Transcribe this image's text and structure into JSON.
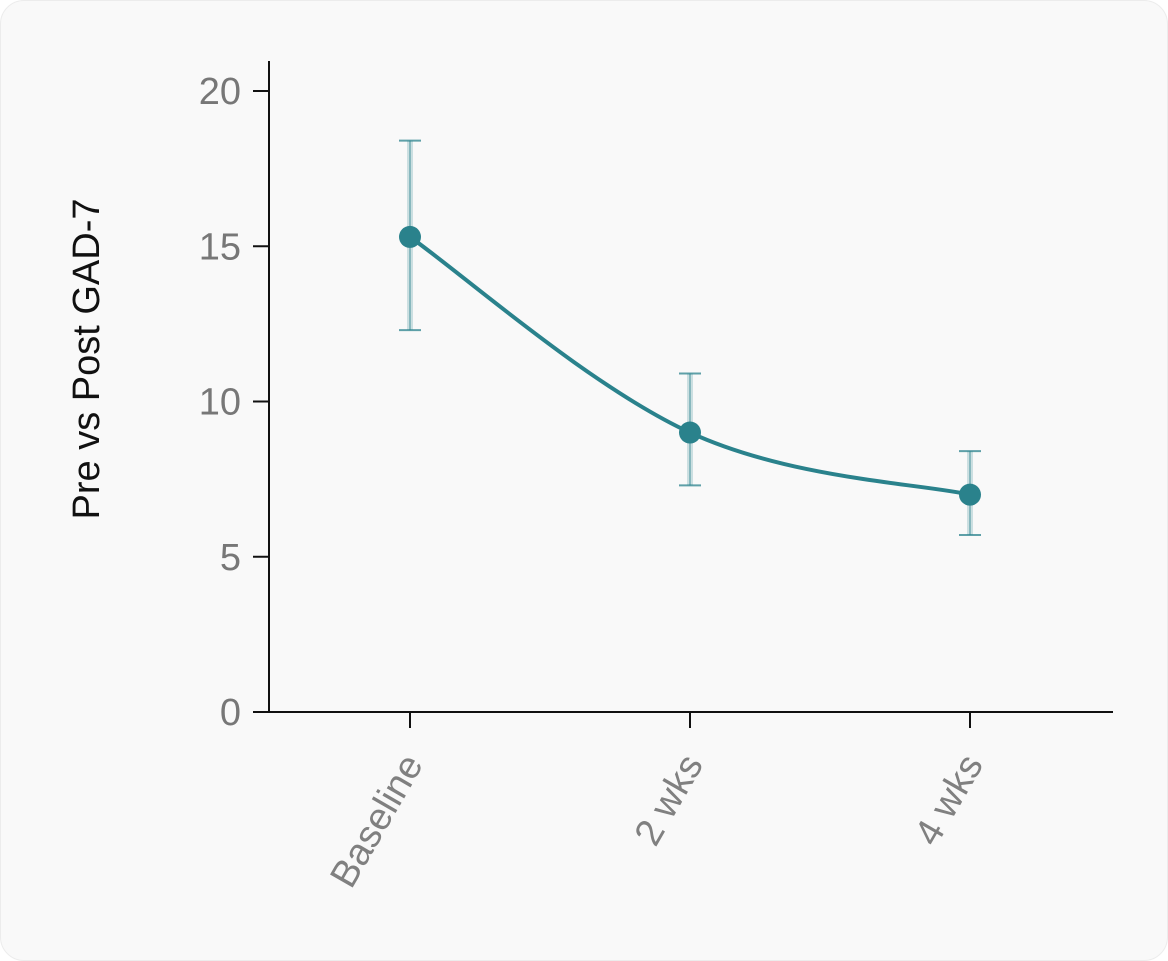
{
  "chart_data": {
    "type": "line",
    "title": "",
    "xlabel": "",
    "ylabel": "Pre vs Post GAD-7",
    "categories": [
      "Baseline",
      "2 wks",
      "4 wks"
    ],
    "series": [
      {
        "values": [
          15.3,
          9.0,
          7.0
        ],
        "error_upper": [
          18.4,
          10.9,
          8.4
        ],
        "error_lower": [
          12.3,
          7.3,
          5.7
        ]
      }
    ],
    "y_ticks": [
      "0",
      "5",
      "10",
      "15",
      "20"
    ],
    "ylim": [
      0,
      21
    ],
    "grid": false,
    "legend": "none",
    "color": "#2a828c"
  }
}
